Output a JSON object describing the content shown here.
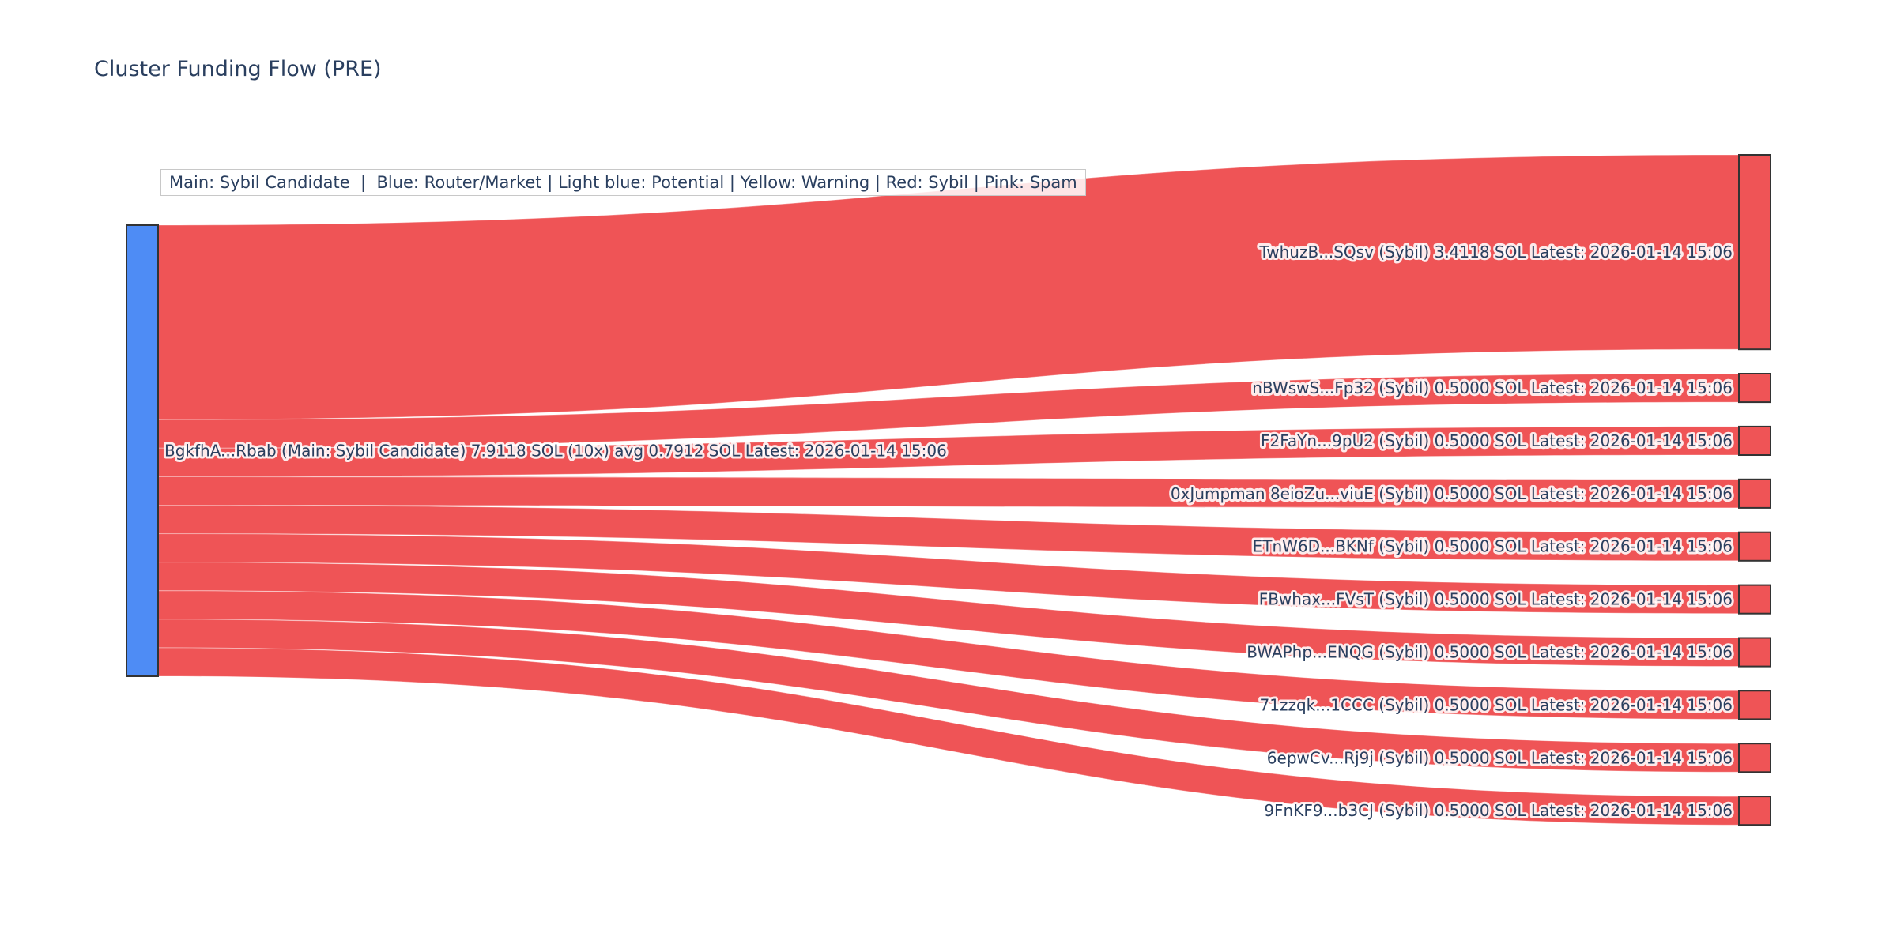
{
  "title": "Cluster Funding Flow (PRE)",
  "legend_note": "Main: Sybil Candidate  |  Blue: Router/Market | Light blue: Potential | Yellow: Warning | Red: Sybil | Pink: Spam",
  "colors": {
    "title_text": "#2a3f5f",
    "label_text": "#2a3f5f",
    "source_node": "#4e8cf5",
    "target_node": "#ef5456",
    "link": "#ef5456",
    "link_separator": "rgba(255,255,255,0.35)",
    "node_border": "#333333",
    "legend_border": "#c8c8c8",
    "legend_bg": "rgba(255,255,255,0.85)"
  },
  "chart_data": {
    "type": "sankey",
    "unit": "SOL",
    "source": {
      "id": "BgkfhA...Rbab",
      "label": "BgkfhA...Rbab (Main: Sybil Candidate) 7.9118 SOL (10x) avg 0.7912 SOL Latest: 2026-01-14 15:06",
      "role": "Main: Sybil Candidate",
      "total_sol": 7.9118,
      "transfer_count": 10,
      "avg_sol": 0.7912,
      "latest": "2026-01-14 15:06"
    },
    "targets": [
      {
        "id": "TwhuzB...SQsv",
        "label": "TwhuzB...SQsv (Sybil) 3.4118 SOL Latest: 2026-01-14 15:06",
        "status": "Sybil",
        "value": 3.4118,
        "latest": "2026-01-14 15:06"
      },
      {
        "id": "nBWswS...Fp32",
        "label": "nBWswS...Fp32 (Sybil) 0.5000 SOL Latest: 2026-01-14 15:06",
        "status": "Sybil",
        "value": 0.5,
        "latest": "2026-01-14 15:06"
      },
      {
        "id": "F2FaYn...9pU2",
        "label": "F2FaYn...9pU2 (Sybil) 0.5000 SOL Latest: 2026-01-14 15:06",
        "status": "Sybil",
        "value": 0.5,
        "latest": "2026-01-14 15:06"
      },
      {
        "id": "0xJumpman 8eioZu...viuE",
        "label": "0xJumpman 8eioZu...viuE (Sybil) 0.5000 SOL Latest: 2026-01-14 15:06",
        "status": "Sybil",
        "value": 0.5,
        "latest": "2026-01-14 15:06"
      },
      {
        "id": "ETnW6D...BKNf",
        "label": "ETnW6D...BKNf (Sybil) 0.5000 SOL Latest: 2026-01-14 15:06",
        "status": "Sybil",
        "value": 0.5,
        "latest": "2026-01-14 15:06"
      },
      {
        "id": "FBwhax...FVsT",
        "label": "FBwhax...FVsT (Sybil) 0.5000 SOL Latest: 2026-01-14 15:06",
        "status": "Sybil",
        "value": 0.5,
        "latest": "2026-01-14 15:06"
      },
      {
        "id": "BWAPhp...ENQG",
        "label": "BWAPhp...ENQG (Sybil) 0.5000 SOL Latest: 2026-01-14 15:06",
        "status": "Sybil",
        "value": 0.5,
        "latest": "2026-01-14 15:06"
      },
      {
        "id": "71zzqk...1CCC",
        "label": "71zzqk...1CCC (Sybil) 0.5000 SOL Latest: 2026-01-14 15:06",
        "status": "Sybil",
        "value": 0.5,
        "latest": "2026-01-14 15:06"
      },
      {
        "id": "6epwCv...Rj9j",
        "label": "6epwCv...Rj9j (Sybil) 0.5000 SOL Latest: 2026-01-14 15:06",
        "status": "Sybil",
        "value": 0.5,
        "latest": "2026-01-14 15:06"
      },
      {
        "id": "9FnKF9...b3CJ",
        "label": "9FnKF9...b3CJ (Sybil) 0.5000 SOL Latest: 2026-01-14 15:06",
        "status": "Sybil",
        "value": 0.5,
        "latest": "2026-01-14 15:06"
      }
    ]
  }
}
